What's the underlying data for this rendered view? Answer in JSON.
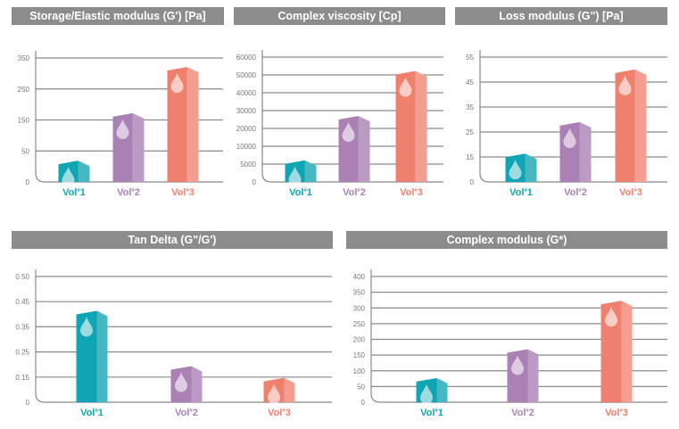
{
  "colors": {
    "vol1": "#0ea5b4",
    "vol1_side": "#47b7c2",
    "vol2": "#aa80b5",
    "vol2_side": "#bb9bc5",
    "vol3": "#f0806e",
    "vol3_side": "#f29f91",
    "title_bg": "#8c8c8c"
  },
  "chart_data": [
    {
      "type": "bar",
      "title": "Storage/Elastic modulus (G') [Pa]",
      "categories": [
        "Vol#1",
        "Vol#2",
        "Vol#3"
      ],
      "values": [
        33,
        169,
        318
      ],
      "yticks": [
        0,
        50,
        150,
        250,
        350
      ],
      "ytick_labels": [
        "0",
        "50",
        "150",
        "250",
        "350"
      ],
      "ylim": [
        0,
        350
      ],
      "grid": true
    },
    {
      "type": "bar",
      "title": "Complex viscosity [Cp]",
      "categories": [
        "Vol#1",
        "Vol#2",
        "Vol#3"
      ],
      "values": [
        5800,
        26500,
        51700
      ],
      "yticks": [
        0,
        5000,
        10000,
        20000,
        30000,
        40000,
        50000,
        60000
      ],
      "ytick_labels": [
        "0",
        "5000",
        "10000",
        "20000",
        "30000",
        "40000",
        "50000",
        "60000"
      ],
      "ylim": [
        0,
        60000
      ],
      "grid": true
    },
    {
      "type": "bar",
      "title": "Loss modulus (G\") [Pa]",
      "categories": [
        "Vol#1",
        "Vol#2",
        "Vol#3"
      ],
      "values": [
        16,
        28.6,
        49.7
      ],
      "yticks": [
        0,
        15,
        25,
        35,
        45,
        55
      ],
      "ytick_labels": [
        "0",
        "15",
        "25",
        "35",
        "45",
        "55"
      ],
      "ylim": [
        0,
        55
      ],
      "grid": true
    },
    {
      "type": "bar",
      "title": "Tan Delta (G\"/G')",
      "categories": [
        "Vol#1",
        "Vol#2",
        "Vol#3"
      ],
      "values": [
        0.41,
        0.19,
        0.14
      ],
      "yticks": [
        0,
        0.15,
        0.25,
        0.35,
        0.45,
        0.5
      ],
      "ytick_labels": [
        "0",
        "0.15",
        "0.25",
        "0.35",
        "0.45",
        "0.50"
      ],
      "ylim": [
        0,
        0.5
      ],
      "grid": true
    },
    {
      "type": "bar",
      "title": "Complex modulus (G*)",
      "categories": [
        "Vol#1",
        "Vol#2",
        "Vol#3"
      ],
      "values": [
        74,
        166,
        320
      ],
      "yticks": [
        0,
        50,
        100,
        150,
        200,
        250,
        300,
        350,
        400
      ],
      "ytick_labels": [
        "0",
        "50",
        "100",
        "150",
        "200",
        "250",
        "300",
        "350",
        "400"
      ],
      "ylim": [
        0,
        400
      ],
      "grid": true
    }
  ]
}
